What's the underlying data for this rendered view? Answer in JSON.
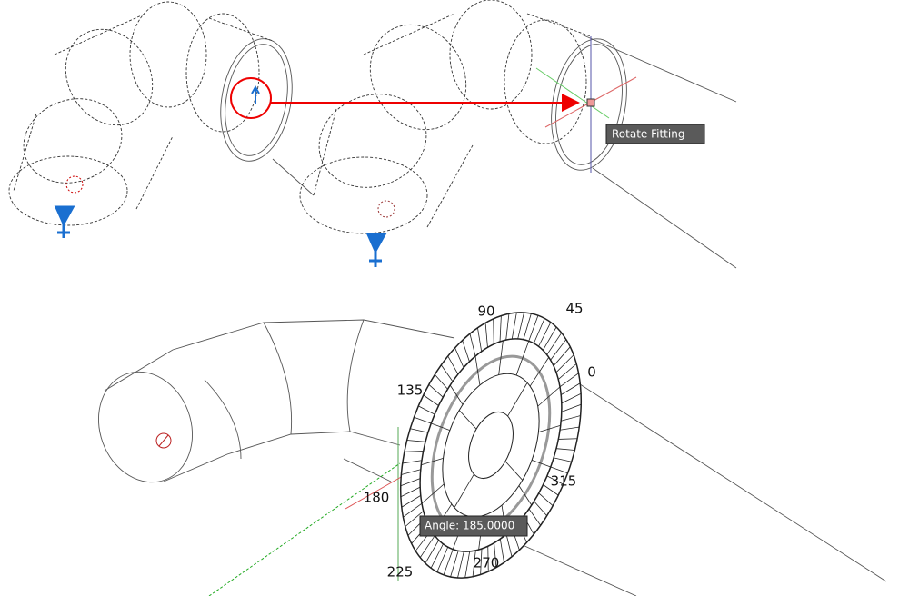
{
  "tooltips": {
    "rotate_fitting": "Rotate Fitting",
    "angle": "Angle: 185.0000"
  },
  "compass": {
    "labels": [
      "90",
      "45",
      "0",
      "135",
      "180",
      "225",
      "270",
      "315"
    ]
  }
}
